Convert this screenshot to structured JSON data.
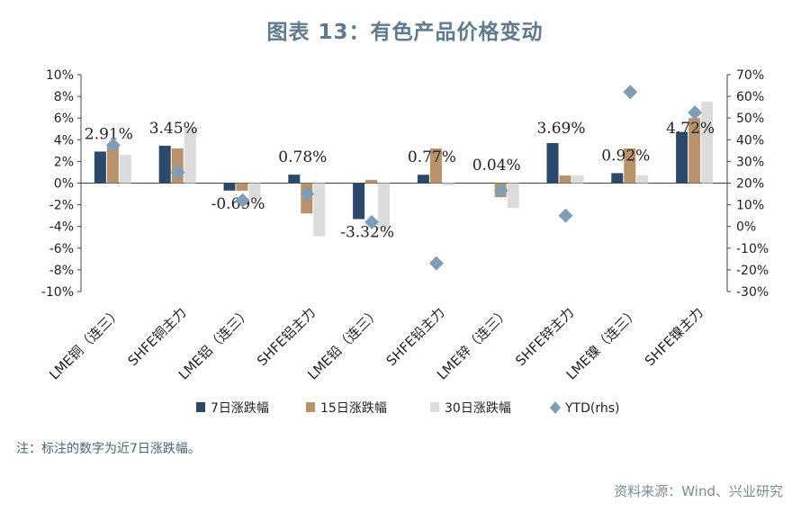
{
  "title": "图表 13：有色产品价格变动",
  "note": "注：标注的数字为近7日涨跌幅。",
  "source": "资料来源：Wind、兴业研究",
  "colors": {
    "s7": "#2b4a6b",
    "s15": "#b8926a",
    "s30": "#dcdcdc",
    "ytd": "#7f9db6",
    "axis": "#444444",
    "label": "#222222"
  },
  "chart_data": {
    "type": "bar",
    "categories": [
      "LME铜（连三）",
      "SHFE铜主力",
      "LME铝（连三）",
      "SHFE铝主力",
      "LME铅（连三）",
      "SHFE铅主力",
      "LME锌（连三）",
      "SHFE锌主力",
      "LME镍（连三）",
      "SHFE镍主力"
    ],
    "series": [
      {
        "name": "7日涨跌幅",
        "values": [
          2.91,
          3.45,
          -0.69,
          0.78,
          -3.32,
          0.77,
          0.04,
          3.69,
          0.92,
          4.72
        ]
      },
      {
        "name": "15日涨跌幅",
        "values": [
          3.5,
          3.2,
          -0.7,
          -2.8,
          0.3,
          3.2,
          -1.3,
          0.7,
          3.2,
          6.0
        ]
      },
      {
        "name": "30日涨跌幅",
        "values": [
          2.6,
          5.1,
          -1.5,
          -4.9,
          -4.2,
          -0.2,
          -2.3,
          0.7,
          0.7,
          7.5
        ]
      }
    ],
    "ytd": {
      "name": "YTD(rhs)",
      "values": [
        37.5,
        25.0,
        12.0,
        15.0,
        2.0,
        -17.0,
        16.5,
        5.0,
        62.0,
        52.5
      ]
    },
    "data_labels": [
      "2.91%",
      "3.45%",
      "-0.69%",
      "0.78%",
      "-3.32%",
      "0.77%",
      "0.04%",
      "3.69%",
      "0.92%",
      "4.72%"
    ],
    "left_axis": {
      "min": -10,
      "max": 10,
      "step": 2,
      "ticks": [
        "-10%",
        "-8%",
        "-6%",
        "-4%",
        "-2%",
        "0%",
        "2%",
        "4%",
        "6%",
        "8%",
        "10%"
      ]
    },
    "right_axis": {
      "min": -30,
      "max": 70,
      "step": 10,
      "ticks": [
        "-30%",
        "-20%",
        "-10%",
        "0%",
        "10%",
        "20%",
        "30%",
        "40%",
        "50%",
        "60%",
        "70%"
      ]
    },
    "legend_position": "bottom",
    "grid": false
  }
}
